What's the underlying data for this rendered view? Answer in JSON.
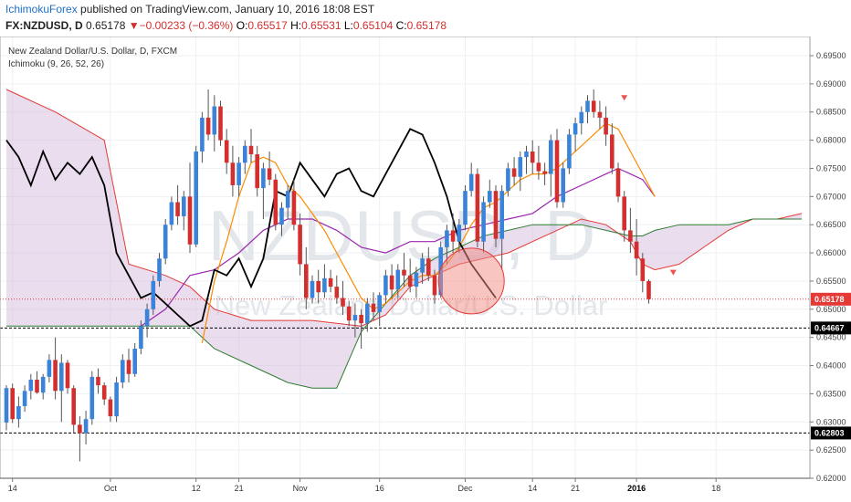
{
  "header": {
    "author": "IchimokuForex",
    "published": " published on TradingView.com, January 10, 2016 18:08 EST",
    "symbol": "FX:NZDUSD, D",
    "last": "0.65178",
    "change": "−0.00233 (−0.36%)",
    "open_label": "O:",
    "open": "0.65517",
    "high_label": "H:",
    "high": "0.65531",
    "low_label": "L:",
    "low": "0.65104",
    "close_label": "C:",
    "close": "0.65178"
  },
  "chart_data": {
    "type": "candlestick",
    "title": "New Zealand Dollar/U.S. Dollar, D, FXCM",
    "indicator": "Ichimoku (9, 26, 52, 26)",
    "watermark_symbol": "NZDUSD, D",
    "watermark_name": "New Zealand Dollar/U.S. Dollar",
    "y_ticks": [
      "0.69500",
      "0.69000",
      "0.68500",
      "0.68000",
      "0.67500",
      "0.67000",
      "0.66500",
      "0.66000",
      "0.65500",
      "0.65000",
      "0.64500",
      "0.64000",
      "0.63500",
      "0.63000",
      "0.62500",
      "0.62000"
    ],
    "ylim": [
      0.6195,
      0.6975
    ],
    "x_ticks": [
      {
        "label": "14",
        "bar": 1
      },
      {
        "label": "Oct",
        "bar": 17
      },
      {
        "label": "12",
        "bar": 31
      },
      {
        "label": "21",
        "bar": 38
      },
      {
        "label": "Nov",
        "bar": 48
      },
      {
        "label": "16",
        "bar": 61
      },
      {
        "label": "Dec",
        "bar": 75
      },
      {
        "label": "14",
        "bar": 86
      },
      {
        "label": "21",
        "bar": 93
      },
      {
        "label": "2016",
        "bar": 103,
        "bold": true
      },
      {
        "label": "18",
        "bar": 116
      }
    ],
    "levels": [
      {
        "price": "0.64667",
        "value": 0.64667,
        "style": "dashed"
      },
      {
        "price": "0.62803",
        "value": 0.62803,
        "style": "dashed"
      }
    ],
    "last_price": {
      "price": "0.65178",
      "value": 0.65178
    },
    "candles": [
      [
        0.6299,
        0.6365,
        0.6285,
        0.636
      ],
      [
        0.636,
        0.6368,
        0.6298,
        0.6305
      ],
      [
        0.6305,
        0.6345,
        0.629,
        0.6328
      ],
      [
        0.6328,
        0.6365,
        0.6318,
        0.6355
      ],
      [
        0.6355,
        0.6385,
        0.634,
        0.6375
      ],
      [
        0.6375,
        0.639,
        0.635,
        0.6352
      ],
      [
        0.6352,
        0.6385,
        0.634,
        0.638
      ],
      [
        0.638,
        0.642,
        0.637,
        0.641
      ],
      [
        0.641,
        0.645,
        0.634,
        0.6355
      ],
      [
        0.6355,
        0.642,
        0.63,
        0.6405
      ],
      [
        0.6405,
        0.641,
        0.635,
        0.636
      ],
      [
        0.636,
        0.6365,
        0.628,
        0.6295
      ],
      [
        0.6295,
        0.631,
        0.623,
        0.628
      ],
      [
        0.628,
        0.632,
        0.626,
        0.6305
      ],
      [
        0.6305,
        0.639,
        0.6295,
        0.638
      ],
      [
        0.638,
        0.6395,
        0.635,
        0.6365
      ],
      [
        0.6365,
        0.637,
        0.633,
        0.634
      ],
      [
        0.634,
        0.6345,
        0.63,
        0.631
      ],
      [
        0.631,
        0.638,
        0.63,
        0.637
      ],
      [
        0.637,
        0.642,
        0.636,
        0.641
      ],
      [
        0.641,
        0.643,
        0.637,
        0.6385
      ],
      [
        0.6385,
        0.644,
        0.638,
        0.643
      ],
      [
        0.643,
        0.648,
        0.642,
        0.647
      ],
      [
        0.647,
        0.651,
        0.645,
        0.65
      ],
      [
        0.65,
        0.656,
        0.649,
        0.655
      ],
      [
        0.655,
        0.66,
        0.654,
        0.659
      ],
      [
        0.659,
        0.666,
        0.658,
        0.665
      ],
      [
        0.665,
        0.67,
        0.664,
        0.669
      ],
      [
        0.669,
        0.672,
        0.665,
        0.6665
      ],
      [
        0.6665,
        0.671,
        0.664,
        0.67
      ],
      [
        0.67,
        0.676,
        0.66,
        0.6615
      ],
      [
        0.6615,
        0.679,
        0.661,
        0.678
      ],
      [
        0.678,
        0.685,
        0.676,
        0.684
      ],
      [
        0.684,
        0.689,
        0.68,
        0.681
      ],
      [
        0.681,
        0.688,
        0.678,
        0.686
      ],
      [
        0.686,
        0.687,
        0.679,
        0.68
      ],
      [
        0.68,
        0.682,
        0.674,
        0.676
      ],
      [
        0.676,
        0.679,
        0.67,
        0.672
      ],
      [
        0.672,
        0.677,
        0.67,
        0.676
      ],
      [
        0.676,
        0.68,
        0.674,
        0.679
      ],
      [
        0.679,
        0.682,
        0.676,
        0.6775
      ],
      [
        0.6775,
        0.679,
        0.67,
        0.6715
      ],
      [
        0.6715,
        0.676,
        0.666,
        0.675
      ],
      [
        0.675,
        0.678,
        0.672,
        0.673
      ],
      [
        0.673,
        0.674,
        0.664,
        0.665
      ],
      [
        0.665,
        0.669,
        0.663,
        0.668
      ],
      [
        0.668,
        0.672,
        0.666,
        0.671
      ],
      [
        0.671,
        0.673,
        0.664,
        0.665
      ],
      [
        0.665,
        0.667,
        0.656,
        0.658
      ],
      [
        0.658,
        0.661,
        0.65,
        0.652
      ],
      [
        0.652,
        0.656,
        0.651,
        0.655
      ],
      [
        0.655,
        0.657,
        0.651,
        0.653
      ],
      [
        0.653,
        0.658,
        0.652,
        0.6555
      ],
      [
        0.6555,
        0.657,
        0.653,
        0.654
      ],
      [
        0.654,
        0.656,
        0.651,
        0.652
      ],
      [
        0.652,
        0.655,
        0.649,
        0.6505
      ],
      [
        0.6505,
        0.6515,
        0.647,
        0.648
      ],
      [
        0.648,
        0.651,
        0.645,
        0.649
      ],
      [
        0.649,
        0.65,
        0.643,
        0.6475
      ],
      [
        0.6475,
        0.652,
        0.646,
        0.651
      ],
      [
        0.651,
        0.653,
        0.648,
        0.6495
      ],
      [
        0.6495,
        0.653,
        0.647,
        0.6525
      ],
      [
        0.6525,
        0.657,
        0.651,
        0.656
      ],
      [
        0.656,
        0.658,
        0.652,
        0.6535
      ],
      [
        0.6535,
        0.658,
        0.652,
        0.657
      ],
      [
        0.657,
        0.66,
        0.654,
        0.656
      ],
      [
        0.656,
        0.659,
        0.653,
        0.654
      ],
      [
        0.654,
        0.6575,
        0.652,
        0.6565
      ],
      [
        0.6565,
        0.66,
        0.6545,
        0.659
      ],
      [
        0.659,
        0.661,
        0.655,
        0.656
      ],
      [
        0.656,
        0.657,
        0.651,
        0.6525
      ],
      [
        0.6525,
        0.662,
        0.652,
        0.661
      ],
      [
        0.661,
        0.665,
        0.658,
        0.664
      ],
      [
        0.664,
        0.667,
        0.66,
        0.662
      ],
      [
        0.662,
        0.666,
        0.66,
        0.665
      ],
      [
        0.665,
        0.672,
        0.664,
        0.671
      ],
      [
        0.671,
        0.676,
        0.67,
        0.674
      ],
      [
        0.674,
        0.675,
        0.661,
        0.662
      ],
      [
        0.662,
        0.67,
        0.66,
        0.669
      ],
      [
        0.669,
        0.673,
        0.668,
        0.671
      ],
      [
        0.671,
        0.672,
        0.661,
        0.6625
      ],
      [
        0.6625,
        0.672,
        0.657,
        0.671
      ],
      [
        0.671,
        0.676,
        0.67,
        0.675
      ],
      [
        0.675,
        0.677,
        0.672,
        0.6735
      ],
      [
        0.6735,
        0.678,
        0.671,
        0.677
      ],
      [
        0.677,
        0.679,
        0.674,
        0.678
      ],
      [
        0.678,
        0.68,
        0.674,
        0.676
      ],
      [
        0.676,
        0.679,
        0.673,
        0.6745
      ],
      [
        0.6745,
        0.676,
        0.672,
        0.674
      ],
      [
        0.674,
        0.681,
        0.67,
        0.68
      ],
      [
        0.68,
        0.682,
        0.668,
        0.669
      ],
      [
        0.669,
        0.676,
        0.668,
        0.675
      ],
      [
        0.675,
        0.682,
        0.674,
        0.681
      ],
      [
        0.681,
        0.684,
        0.678,
        0.683
      ],
      [
        0.683,
        0.686,
        0.681,
        0.685
      ],
      [
        0.685,
        0.688,
        0.683,
        0.687
      ],
      [
        0.687,
        0.689,
        0.684,
        0.685
      ],
      [
        0.685,
        0.687,
        0.682,
        0.684
      ],
      [
        0.684,
        0.686,
        0.679,
        0.681
      ],
      [
        0.681,
        0.683,
        0.674,
        0.675
      ],
      [
        0.675,
        0.676,
        0.669,
        0.67
      ],
      [
        0.67,
        0.671,
        0.662,
        0.664
      ],
      [
        0.664,
        0.668,
        0.66,
        0.662
      ],
      [
        0.662,
        0.666,
        0.656,
        0.659
      ],
      [
        0.659,
        0.66,
        0.653,
        0.655
      ],
      [
        0.655,
        0.6553,
        0.651,
        0.6518
      ]
    ],
    "tenkan": [
      [
        32,
        0.644
      ],
      [
        34,
        0.655
      ],
      [
        36,
        0.662
      ],
      [
        38,
        0.67
      ],
      [
        40,
        0.676
      ],
      [
        42,
        0.677
      ],
      [
        44,
        0.676
      ],
      [
        46,
        0.672
      ],
      [
        48,
        0.67
      ],
      [
        50,
        0.667
      ],
      [
        52,
        0.664
      ],
      [
        54,
        0.66
      ],
      [
        56,
        0.656
      ],
      [
        58,
        0.652
      ],
      [
        60,
        0.65
      ],
      [
        62,
        0.651
      ],
      [
        64,
        0.653
      ],
      [
        66,
        0.655
      ],
      [
        68,
        0.656
      ],
      [
        70,
        0.656
      ],
      [
        72,
        0.658
      ],
      [
        74,
        0.661
      ],
      [
        76,
        0.665
      ],
      [
        78,
        0.668
      ],
      [
        80,
        0.669
      ],
      [
        82,
        0.671
      ],
      [
        84,
        0.673
      ],
      [
        86,
        0.674
      ],
      [
        88,
        0.674
      ],
      [
        90,
        0.675
      ],
      [
        92,
        0.677
      ],
      [
        94,
        0.679
      ],
      [
        96,
        0.681
      ],
      [
        98,
        0.683
      ],
      [
        100,
        0.682
      ],
      [
        102,
        0.678
      ],
      [
        104,
        0.674
      ],
      [
        106,
        0.67
      ]
    ],
    "kijun": [
      [
        22,
        0.647
      ],
      [
        26,
        0.65
      ],
      [
        30,
        0.656
      ],
      [
        34,
        0.657
      ],
      [
        38,
        0.66
      ],
      [
        42,
        0.664
      ],
      [
        46,
        0.666
      ],
      [
        50,
        0.666
      ],
      [
        54,
        0.664
      ],
      [
        58,
        0.661
      ],
      [
        62,
        0.66
      ],
      [
        66,
        0.662
      ],
      [
        70,
        0.662
      ],
      [
        74,
        0.664
      ],
      [
        78,
        0.665
      ],
      [
        82,
        0.666
      ],
      [
        86,
        0.667
      ],
      [
        90,
        0.67
      ],
      [
        94,
        0.672
      ],
      [
        98,
        0.674
      ],
      [
        100,
        0.675
      ],
      [
        102,
        0.674
      ],
      [
        104,
        0.673
      ],
      [
        106,
        0.67
      ]
    ],
    "chikou": [
      [
        0,
        0.68
      ],
      [
        2,
        0.677
      ],
      [
        4,
        0.672
      ],
      [
        6,
        0.678
      ],
      [
        8,
        0.673
      ],
      [
        10,
        0.676
      ],
      [
        12,
        0.674
      ],
      [
        14,
        0.677
      ],
      [
        16,
        0.672
      ],
      [
        18,
        0.66
      ],
      [
        20,
        0.656
      ],
      [
        22,
        0.652
      ],
      [
        24,
        0.653
      ],
      [
        26,
        0.651
      ],
      [
        28,
        0.649
      ],
      [
        30,
        0.647
      ],
      [
        32,
        0.648
      ],
      [
        34,
        0.657
      ],
      [
        36,
        0.656
      ],
      [
        38,
        0.659
      ],
      [
        40,
        0.654
      ],
      [
        42,
        0.659
      ],
      [
        44,
        0.671
      ],
      [
        46,
        0.67
      ],
      [
        48,
        0.676
      ],
      [
        50,
        0.673
      ],
      [
        52,
        0.67
      ],
      [
        54,
        0.674
      ],
      [
        56,
        0.675
      ],
      [
        58,
        0.671
      ],
      [
        60,
        0.67
      ],
      [
        62,
        0.674
      ],
      [
        64,
        0.678
      ],
      [
        66,
        0.682
      ],
      [
        68,
        0.681
      ],
      [
        70,
        0.676
      ],
      [
        72,
        0.67
      ],
      [
        74,
        0.662
      ],
      [
        76,
        0.658
      ],
      [
        78,
        0.655
      ],
      [
        80,
        0.652
      ]
    ],
    "span_a": [
      [
        0,
        0.689
      ],
      [
        8,
        0.685
      ],
      [
        16,
        0.68
      ],
      [
        20,
        0.658
      ],
      [
        26,
        0.656
      ],
      [
        30,
        0.654
      ],
      [
        34,
        0.65
      ],
      [
        40,
        0.648
      ],
      [
        50,
        0.648
      ],
      [
        58,
        0.647
      ],
      [
        62,
        0.649
      ],
      [
        66,
        0.654
      ],
      [
        70,
        0.656
      ],
      [
        74,
        0.658
      ],
      [
        78,
        0.659
      ],
      [
        82,
        0.66
      ],
      [
        86,
        0.662
      ],
      [
        90,
        0.664
      ],
      [
        94,
        0.666
      ],
      [
        98,
        0.665
      ],
      [
        102,
        0.662
      ],
      [
        104,
        0.658
      ],
      [
        106,
        0.657
      ],
      [
        110,
        0.658
      ],
      [
        114,
        0.661
      ],
      [
        118,
        0.664
      ],
      [
        122,
        0.666
      ],
      [
        126,
        0.666
      ],
      [
        130,
        0.667
      ]
    ],
    "span_b": [
      [
        0,
        0.647
      ],
      [
        8,
        0.647
      ],
      [
        16,
        0.647
      ],
      [
        20,
        0.647
      ],
      [
        26,
        0.647
      ],
      [
        30,
        0.647
      ],
      [
        34,
        0.643
      ],
      [
        40,
        0.64
      ],
      [
        46,
        0.637
      ],
      [
        50,
        0.636
      ],
      [
        54,
        0.636
      ],
      [
        58,
        0.646
      ],
      [
        62,
        0.651
      ],
      [
        66,
        0.656
      ],
      [
        70,
        0.659
      ],
      [
        74,
        0.661
      ],
      [
        78,
        0.663
      ],
      [
        82,
        0.664
      ],
      [
        86,
        0.665
      ],
      [
        90,
        0.665
      ],
      [
        94,
        0.665
      ],
      [
        98,
        0.664
      ],
      [
        102,
        0.663
      ],
      [
        104,
        0.663
      ],
      [
        106,
        0.664
      ],
      [
        110,
        0.665
      ],
      [
        114,
        0.665
      ],
      [
        118,
        0.665
      ],
      [
        122,
        0.666
      ],
      [
        126,
        0.666
      ],
      [
        130,
        0.666
      ]
    ],
    "markers": [
      [
        101,
        0.6875
      ],
      [
        109,
        0.6565
      ]
    ],
    "highlight": {
      "bar": 76,
      "price": 0.655
    }
  }
}
